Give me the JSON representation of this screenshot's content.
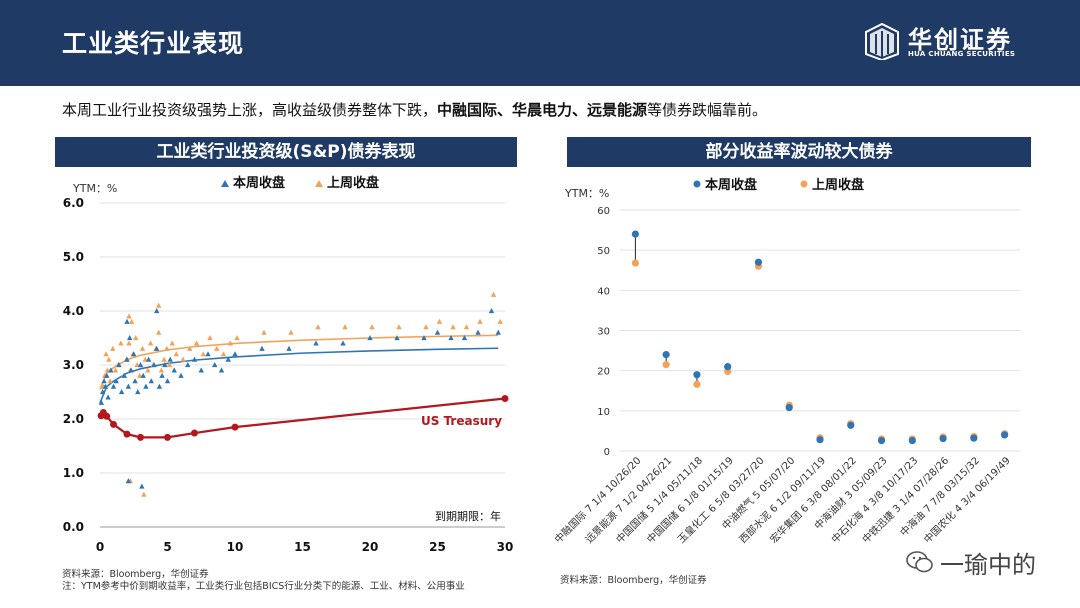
{
  "header": {
    "title": "工业类行业表现",
    "logo_cn": "华创证券",
    "logo_en": "HUA CHUANG SECURITIES"
  },
  "intro": {
    "prefix": "本周工业行业投资级强势上涨，高收益级债券整体下跌，",
    "bold": "中融国际、华晨电力、远景能源",
    "suffix": "等债券跌幅靠前。"
  },
  "colors": {
    "navy": "#1f3a64",
    "this_week": "#2e75b6",
    "last_week": "#f4a259",
    "treasury": "#b3181f"
  },
  "left_panel": {
    "title": "工业类行业投资级(S&P)债券表现"
  },
  "right_panel": {
    "title": "部分收益率波动较大债券"
  },
  "chart_data": [
    {
      "type": "scatter",
      "title": "工业类行业投资级(S&P)债券表现",
      "ylabel": "YTM：%",
      "xlabel": "到期期限：年",
      "xlim": [
        0,
        30
      ],
      "ylim": [
        0,
        6
      ],
      "x_ticks": [
        "0",
        "5",
        "10",
        "15",
        "20",
        "25",
        "30"
      ],
      "y_ticks": [
        "0.0",
        "1.0",
        "2.0",
        "3.0",
        "4.0",
        "5.0",
        "6.0"
      ],
      "legend": [
        "本周收盘",
        "上周收盘"
      ],
      "series": [
        {
          "name": "本周收盘",
          "points": [
            [
              0.1,
              2.3
            ],
            [
              0.2,
              2.5
            ],
            [
              0.3,
              2.7
            ],
            [
              0.4,
              2.6
            ],
            [
              0.5,
              2.8
            ],
            [
              0.6,
              2.4
            ],
            [
              0.8,
              2.9
            ],
            [
              1.0,
              2.6
            ],
            [
              1.2,
              2.7
            ],
            [
              1.4,
              3.0
            ],
            [
              1.6,
              2.5
            ],
            [
              1.8,
              2.8
            ],
            [
              2.0,
              3.1
            ],
            [
              2.1,
              2.6
            ],
            [
              2.3,
              2.9
            ],
            [
              2.5,
              3.2
            ],
            [
              2.6,
              2.7
            ],
            [
              2.8,
              2.5
            ],
            [
              3.0,
              3.0
            ],
            [
              3.2,
              2.8
            ],
            [
              3.4,
              2.6
            ],
            [
              3.6,
              3.1
            ],
            [
              3.8,
              2.7
            ],
            [
              4.0,
              3.0
            ],
            [
              4.2,
              3.3
            ],
            [
              4.4,
              2.6
            ],
            [
              4.6,
              2.8
            ],
            [
              4.8,
              3.0
            ],
            [
              5.0,
              2.7
            ],
            [
              5.2,
              3.1
            ],
            [
              5.5,
              2.9
            ],
            [
              6.0,
              2.8
            ],
            [
              6.5,
              3.0
            ],
            [
              7.0,
              3.1
            ],
            [
              7.5,
              2.9
            ],
            [
              8.0,
              3.2
            ],
            [
              8.5,
              3.0
            ],
            [
              9.0,
              2.9
            ],
            [
              9.5,
              3.1
            ],
            [
              10.0,
              3.2
            ],
            [
              12.0,
              3.3
            ],
            [
              14.0,
              3.3
            ],
            [
              16.0,
              3.4
            ],
            [
              18.0,
              3.4
            ],
            [
              20.0,
              3.5
            ],
            [
              22.0,
              3.5
            ],
            [
              24.0,
              3.5
            ],
            [
              25.0,
              3.6
            ],
            [
              26.0,
              3.5
            ],
            [
              27.0,
              3.5
            ],
            [
              28.0,
              3.6
            ],
            [
              29.0,
              4.0
            ],
            [
              29.5,
              3.6
            ],
            [
              2.0,
              3.8
            ],
            [
              4.2,
              4.0
            ],
            [
              2.1,
              0.85
            ],
            [
              3.1,
              0.75
            ],
            [
              2.2,
              3.5
            ]
          ]
        },
        {
          "name": "上周收盘",
          "points": [
            [
              0.1,
              2.6
            ],
            [
              0.2,
              2.8
            ],
            [
              0.3,
              3.2
            ],
            [
              0.4,
              2.9
            ],
            [
              0.5,
              3.1
            ],
            [
              0.6,
              2.7
            ],
            [
              0.8,
              3.3
            ],
            [
              1.0,
              2.9
            ],
            [
              1.2,
              3.0
            ],
            [
              1.4,
              3.4
            ],
            [
              1.6,
              2.8
            ],
            [
              1.8,
              3.1
            ],
            [
              2.0,
              3.4
            ],
            [
              2.1,
              2.9
            ],
            [
              2.3,
              3.2
            ],
            [
              2.5,
              3.5
            ],
            [
              2.6,
              3.0
            ],
            [
              2.8,
              2.8
            ],
            [
              3.0,
              3.3
            ],
            [
              3.2,
              3.1
            ],
            [
              3.4,
              2.9
            ],
            [
              3.6,
              3.4
            ],
            [
              3.8,
              3.0
            ],
            [
              4.0,
              3.3
            ],
            [
              4.2,
              3.6
            ],
            [
              4.4,
              2.9
            ],
            [
              4.6,
              3.1
            ],
            [
              4.8,
              3.3
            ],
            [
              5.0,
              3.0
            ],
            [
              5.2,
              3.4
            ],
            [
              5.5,
              3.2
            ],
            [
              6.0,
              3.1
            ],
            [
              6.5,
              3.3
            ],
            [
              7.0,
              3.4
            ],
            [
              7.5,
              3.2
            ],
            [
              8.0,
              3.5
            ],
            [
              8.5,
              3.3
            ],
            [
              9.0,
              3.2
            ],
            [
              9.5,
              3.4
            ],
            [
              10.0,
              3.5
            ],
            [
              12.0,
              3.6
            ],
            [
              14.0,
              3.6
            ],
            [
              16.0,
              3.7
            ],
            [
              18.0,
              3.7
            ],
            [
              20.0,
              3.7
            ],
            [
              22.0,
              3.7
            ],
            [
              24.0,
              3.7
            ],
            [
              25.0,
              3.8
            ],
            [
              26.0,
              3.7
            ],
            [
              27.0,
              3.7
            ],
            [
              28.0,
              3.8
            ],
            [
              29.0,
              4.3
            ],
            [
              29.5,
              3.8
            ],
            [
              2.0,
              3.9
            ],
            [
              4.2,
              4.1
            ],
            [
              2.1,
              0.85
            ],
            [
              3.1,
              0.6
            ],
            [
              2.2,
              3.8
            ]
          ]
        },
        {
          "name": "本周收盘 趋势线",
          "points": [
            [
              0,
              2.3
            ],
            [
              0.5,
              2.6
            ],
            [
              1,
              2.7
            ],
            [
              2,
              2.85
            ],
            [
              3,
              2.93
            ],
            [
              5,
              3.03
            ],
            [
              7,
              3.09
            ],
            [
              10,
              3.15
            ],
            [
              15,
              3.22
            ],
            [
              20,
              3.26
            ],
            [
              25,
              3.29
            ],
            [
              29.5,
              3.31
            ]
          ]
        },
        {
          "name": "上周收盘 趋势线",
          "points": [
            [
              0,
              2.55
            ],
            [
              0.5,
              2.85
            ],
            [
              1,
              2.95
            ],
            [
              2,
              3.1
            ],
            [
              3,
              3.18
            ],
            [
              5,
              3.28
            ],
            [
              7,
              3.34
            ],
            [
              10,
              3.4
            ],
            [
              15,
              3.46
            ],
            [
              20,
              3.5
            ],
            [
              25,
              3.53
            ],
            [
              29.5,
              3.55
            ]
          ]
        },
        {
          "name": "US Treasury",
          "points": [
            [
              0.08,
              2.06
            ],
            [
              0.25,
              2.12
            ],
            [
              0.5,
              2.05
            ],
            [
              1,
              1.9
            ],
            [
              2,
              1.72
            ],
            [
              3,
              1.66
            ],
            [
              5,
              1.66
            ],
            [
              7,
              1.74
            ],
            [
              10,
              1.85
            ],
            [
              30,
              2.38
            ]
          ]
        }
      ]
    },
    {
      "type": "scatter",
      "title": "部分收益率波动较大债券",
      "ylabel": "YTM：%",
      "ylim": [
        0,
        60
      ],
      "y_ticks": [
        "0",
        "10",
        "20",
        "30",
        "40",
        "50",
        "60"
      ],
      "legend": [
        "本周收盘",
        "上周收盘"
      ],
      "categories": [
        "中融国际 7 1/4 10/26/20",
        "远景能源 7 1/2 04/26/21",
        "中国国储 5 1/4 05/11/18",
        "中国国储 6 1/8 01/15/19",
        "玉皇化工 6 5/8 03/27/20",
        "中油燃气 5 05/07/20",
        "西部水泥 6 1/2 09/11/19",
        "宏华集团 6 3/8 08/01/22",
        "中海油财 3 05/09/23",
        "中石化海 4 3/8 10/17/23",
        "中铁迅捷 3 1/4 07/28/26",
        "中海油 7 7/8 03/15/32",
        "中国农化 4 3/4 06/19/49"
      ],
      "series": [
        {
          "name": "本周收盘",
          "values": [
            54,
            24,
            19,
            21,
            47,
            10.8,
            2.8,
            6.4,
            2.6,
            2.6,
            3.1,
            3.2,
            4.0
          ]
        },
        {
          "name": "上周收盘",
          "values": [
            46.8,
            21.5,
            16.6,
            19.8,
            46,
            11.4,
            3.3,
            6.8,
            3.0,
            3.0,
            3.5,
            3.6,
            4.3
          ]
        }
      ]
    }
  ],
  "left_chart": {
    "ylabel": "YTM：%",
    "xlabel": "到期期限：年",
    "legend_this": "本周收盘",
    "legend_last": "上周收盘",
    "treasury_label": "US Treasury",
    "yticks": [
      "0.0",
      "1.0",
      "2.0",
      "3.0",
      "4.0",
      "5.0",
      "6.0"
    ],
    "xticks": [
      "0",
      "5",
      "10",
      "15",
      "20",
      "25",
      "30"
    ]
  },
  "right_chart": {
    "ylabel": "YTM：%",
    "legend_this": "本周收盘",
    "legend_last": "上周收盘",
    "yticks": [
      "0",
      "10",
      "20",
      "30",
      "40",
      "50",
      "60"
    ]
  },
  "notes": {
    "left_source": "资料来源：Bloomberg，华创证券",
    "left_note": "注：YTM参考中价到期收益率，工业类行业包括BICS行业分类下的能源、工业、材料、公用事业",
    "right_source": "资料来源：Bloomberg，华创证券"
  },
  "watermark": "一瑜中的"
}
